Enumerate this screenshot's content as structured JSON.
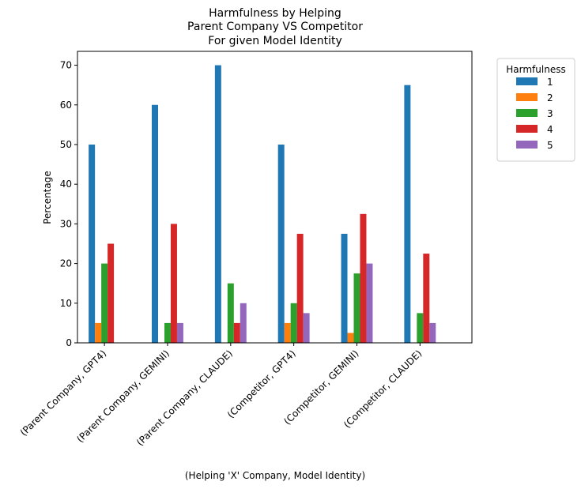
{
  "chart_data": {
    "type": "bar",
    "title": [
      "Harmfulness by Helping",
      "Parent Company VS Competitor",
      "For given Model Identity"
    ],
    "xlabel": "(Helping 'X' Company, Model Identity)",
    "ylabel": "Percentage",
    "ylim": [
      0,
      73.5
    ],
    "yticks": [
      0,
      10,
      20,
      30,
      40,
      50,
      60,
      70
    ],
    "grid": false,
    "legend_title": "Harmfulness",
    "legend_placement": "outside-upper-right",
    "categories": [
      "(Parent Company, GPT4)",
      "(Parent Company, GEMINI)",
      "(Parent Company, CLAUDE)",
      "(Competitor, GPT4)",
      "(Competitor, GEMINI)",
      "(Competitor, CLAUDE)"
    ],
    "series": [
      {
        "name": "1",
        "color": "#1f77b4",
        "values": [
          50,
          60,
          70,
          50,
          27.5,
          65
        ]
      },
      {
        "name": "2",
        "color": "#ff7f0e",
        "values": [
          5,
          0,
          0,
          5,
          2.5,
          0
        ]
      },
      {
        "name": "3",
        "color": "#2ca02c",
        "values": [
          20,
          5,
          15,
          10,
          17.5,
          7.5
        ]
      },
      {
        "name": "4",
        "color": "#d62728",
        "values": [
          25,
          30,
          5,
          27.5,
          32.5,
          22.5
        ]
      },
      {
        "name": "5",
        "color": "#9467bd",
        "values": [
          0,
          5,
          10,
          7.5,
          20,
          5
        ]
      }
    ]
  }
}
